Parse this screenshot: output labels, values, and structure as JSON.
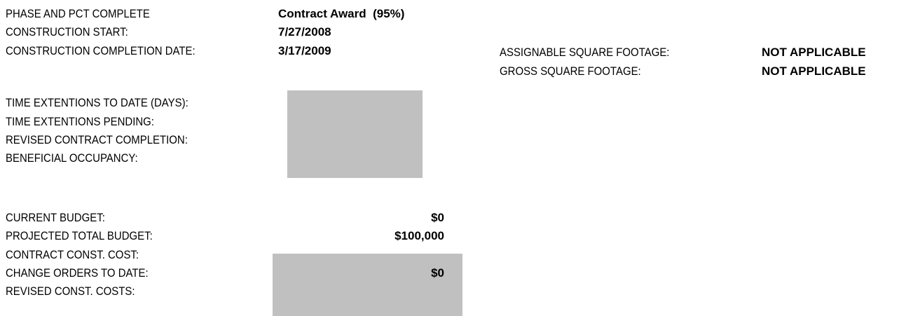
{
  "schedule": [
    {
      "label": "PHASE AND PCT COMPLETE",
      "value": "Contract Award  (95%)"
    },
    {
      "label": "CONSTRUCTION START:",
      "value": "7/27/2008"
    },
    {
      "label": "CONSTRUCTION COMPLETION DATE:",
      "value": "3/17/2009"
    }
  ],
  "extensions": [
    {
      "label": "TIME EXTENTIONS TO DATE (DAYS):"
    },
    {
      "label": "TIME EXTENTIONS PENDING:"
    },
    {
      "label": "REVISED CONTRACT COMPLETION:"
    },
    {
      "label": "BENEFICIAL OCCUPANCY:"
    }
  ],
  "budget": [
    {
      "label": "CURRENT BUDGET:",
      "value": "$0"
    },
    {
      "label": "PROJECTED TOTAL BUDGET:",
      "value": "$100,000"
    },
    {
      "label": "CONTRACT CONST. COST:"
    },
    {
      "label": "CHANGE ORDERS TO DATE:",
      "value": "$0"
    },
    {
      "label": "REVISED CONST. COSTS:"
    }
  ],
  "footage": [
    {
      "label": "ASSIGNABLE SQUARE FOOTAGE:",
      "value": "NOT APPLICABLE"
    },
    {
      "label": "GROSS SQUARE FOOTAGE:",
      "value": "NOT APPLICABLE"
    }
  ]
}
